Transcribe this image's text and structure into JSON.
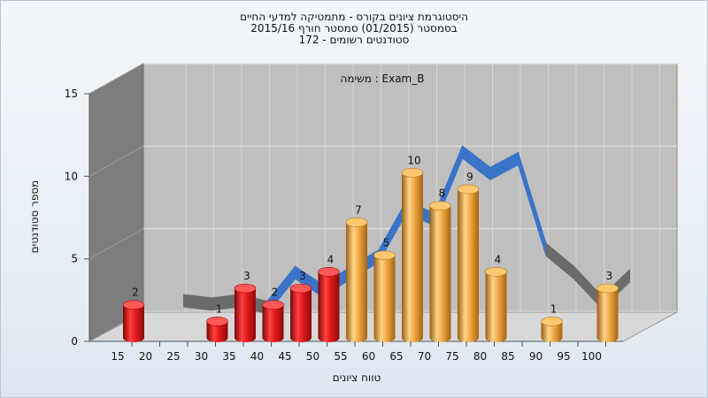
{
  "title_lines": [
    "היסטוגרמת ציונים בקורס - מתמטיקה למדעי החיים",
    "בסמסטר  (01/2015)  סמסטר חורף 2015/16",
    "סטודנטים רשומים - 172"
  ],
  "chart_data": {
    "type": "bar",
    "annotation": "משימה : Exam_B",
    "xlabel": "טווח ציונים",
    "ylabel": "מספר סטודנטים",
    "ylim": [
      0,
      15
    ],
    "y_ticks": [
      0,
      5,
      10,
      15
    ],
    "x_ticks": [
      15,
      20,
      25,
      30,
      35,
      40,
      45,
      50,
      55,
      60,
      65,
      70,
      75,
      80,
      85,
      90,
      95,
      100
    ],
    "series": [
      {
        "bins": [
          15,
          30,
          35,
          40,
          45,
          50,
          55,
          60,
          65,
          70,
          75,
          80,
          90,
          100
        ],
        "values": [
          2,
          1,
          3,
          2,
          3,
          4,
          7,
          5,
          10,
          8,
          9,
          4,
          1,
          3
        ],
        "colors": [
          "#e01a1a",
          "#e01a1a",
          "#e01a1a",
          "#e01a1a",
          "#e01a1a",
          "#e01a1a",
          "#f0a844",
          "#f0a844",
          "#f0a844",
          "#f0a844",
          "#f0a844",
          "#f0a844",
          "#f0a844",
          "#f0a844"
        ]
      },
      {
        "type": "line",
        "x": [
          20,
          25,
          30,
          35,
          40,
          45,
          50,
          55,
          60,
          65,
          70,
          75,
          80,
          85,
          90,
          95,
          100
        ],
        "values": [
          1.5,
          1.3,
          1.5,
          1.1,
          3.2,
          2.1,
          3.2,
          4.2,
          7.2,
          6.4,
          10.5,
          9.2,
          10.1,
          4.6,
          3.2,
          1.4,
          3.0
        ]
      }
    ]
  },
  "colors": {
    "red_bar": "#e01a1a",
    "orange_bar": "#f0a844",
    "curve_blue": "#3a74c8",
    "curve_gray": "#6b6b6b",
    "plot_back": "#bfbfbf",
    "side_wall": "#7d7d7d"
  }
}
